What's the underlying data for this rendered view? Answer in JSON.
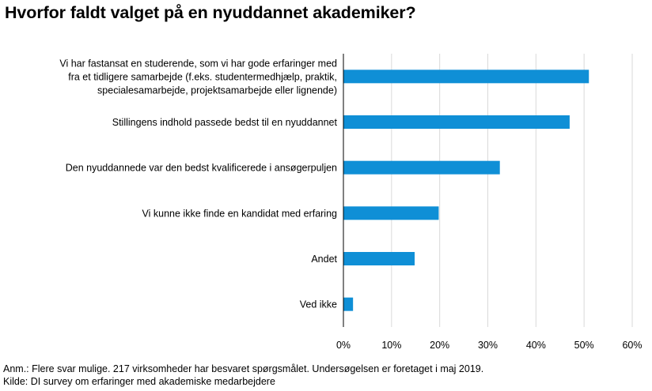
{
  "title": "Hvorfor faldt valget på en nyuddannet akademiker?",
  "notes": {
    "anm": "Anm.: Flere svar mulige. 217 virksomheder har besvaret spørgsmålet. Undersøgelsen  er foretaget i maj 2019.",
    "kilde": "Kilde: DI survey om erfaringer med akademiske medarbejdere"
  },
  "chart_data": {
    "type": "bar",
    "orientation": "horizontal",
    "categories": [
      [
        "Vi har fastansat en studerende, som vi har gode erfaringer med",
        "fra et tidligere samarbejde (f.eks. studentermedhjælp, praktik,",
        "specialesamarbejde, projektsamarbejde eller lignende)"
      ],
      [
        "Stillingens indhold passede bedst til en nyuddannet"
      ],
      [
        "Den nyuddannede var den bedst kvalificerede i  ansøgerpuljen"
      ],
      [
        "Vi kunne ikke finde en kandidat med erfaring"
      ],
      [
        "Andet"
      ],
      [
        "Ved ikke"
      ]
    ],
    "values": [
      51,
      47,
      32.5,
      19.8,
      14.8,
      2
    ],
    "xlim": [
      0,
      60
    ],
    "xticks": [
      "0%",
      "10%",
      "20%",
      "30%",
      "40%",
      "50%",
      "60%"
    ],
    "bar_color": "#0f8fd6",
    "grid": true
  }
}
